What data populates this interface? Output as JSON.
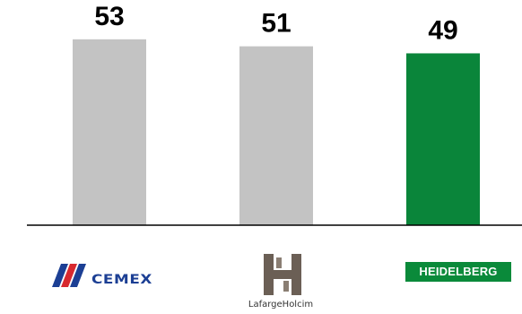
{
  "chart_data": {
    "type": "bar",
    "categories": [
      "CEMEX",
      "LafargeHolcim",
      "HEIDELBERG"
    ],
    "values": [
      53,
      51,
      49
    ],
    "data_labels": [
      "53",
      "51",
      "49"
    ],
    "ylim": [
      0,
      55
    ],
    "grid": false,
    "legend": "none",
    "colors": [
      "#c3c3c3",
      "#c3c3c3",
      "#0a853a"
    ]
  },
  "logos": {
    "cemex": {
      "label": "CEMEX",
      "icon": "cemex-logo-icon",
      "color": "#1c3f94",
      "accent": "#d8292f"
    },
    "lafargeholcim": {
      "label": "LafargeHolcim",
      "icon": "lafargeholcim-logo-icon",
      "color": "#6b5f55"
    },
    "heidelberg": {
      "label": "HEIDELBERG",
      "icon": "heidelberg-logo-icon",
      "color": "#0a8a3a"
    }
  }
}
